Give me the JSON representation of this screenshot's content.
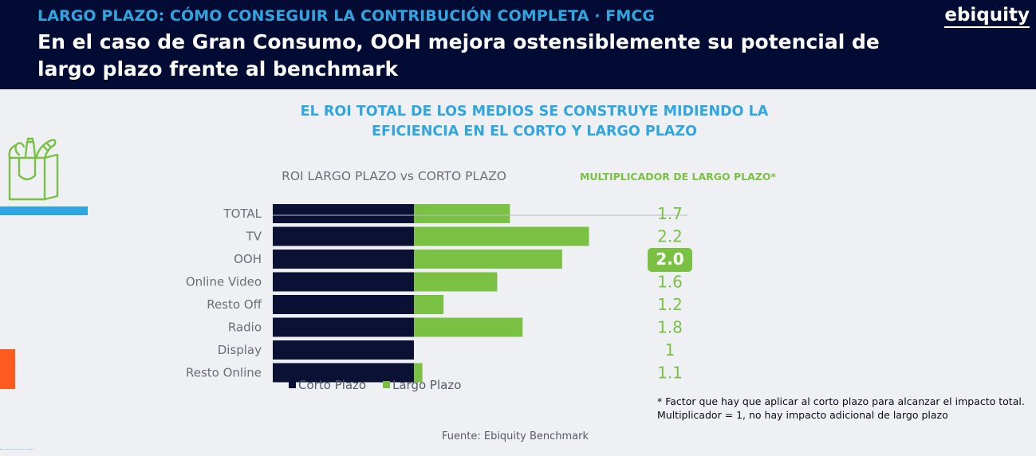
{
  "header": {
    "kicker": "LARGO PLAZO: CÓMO CONSEGUIR LA CONTRIBUCIÓN COMPLETA · FMCG",
    "headline": "En el caso de Gran Consumo, OOH mejora ostensiblemente su potencial de largo plazo frente al benchmark",
    "brand": "ebiquity"
  },
  "subtitle": "EL ROI TOTAL DE LOS MEDIOS SE CONSTRUYE MIDIENDO LA EFICIENCIA EN EL CORTO Y LARGO PLAZO",
  "icon": "shopping-bag-groceries-icon",
  "colors": {
    "header_bg": "#020b33",
    "accent_blue": "#2fa6e0",
    "corto_plazo": "#0b1035",
    "largo_plazo": "#7ac143",
    "accent_orange": "#ff5a1f"
  },
  "chart_data": {
    "type": "bar",
    "stacked": true,
    "orientation": "horizontal",
    "title": "ROI LARGO PLAZO vs CORTO PLAZO",
    "categories": [
      "TOTAL",
      "TV",
      "OOH",
      "Online Video",
      "Resto Off",
      "Radio",
      "Display",
      "Resto Online"
    ],
    "series": [
      {
        "name": "Corto Plazo",
        "values": [
          1,
          1,
          1,
          1,
          1,
          1,
          1,
          1
        ],
        "color": "#0b1035"
      },
      {
        "name": "Largo Plazo",
        "values": [
          0.68,
          1.24,
          1.05,
          0.59,
          0.21,
          0.77,
          0,
          0.06
        ],
        "color": "#7ac143"
      }
    ],
    "legend_position": "bottom",
    "grid": false,
    "multiplier": {
      "title": "MULTIPLICADOR DE LARGO PLAZO*",
      "values": [
        "1.7",
        "2.2",
        "2.0",
        "1.6",
        "1.2",
        "1.8",
        "1",
        "1.1"
      ],
      "highlight_index": 2
    }
  },
  "footnote": "* Factor que hay que aplicar al corto plazo para alcanzar el impacto total. Multiplicador = 1, no hay impacto adicional de largo plazo",
  "source": "Fuente: Ebiquity Benchmark"
}
